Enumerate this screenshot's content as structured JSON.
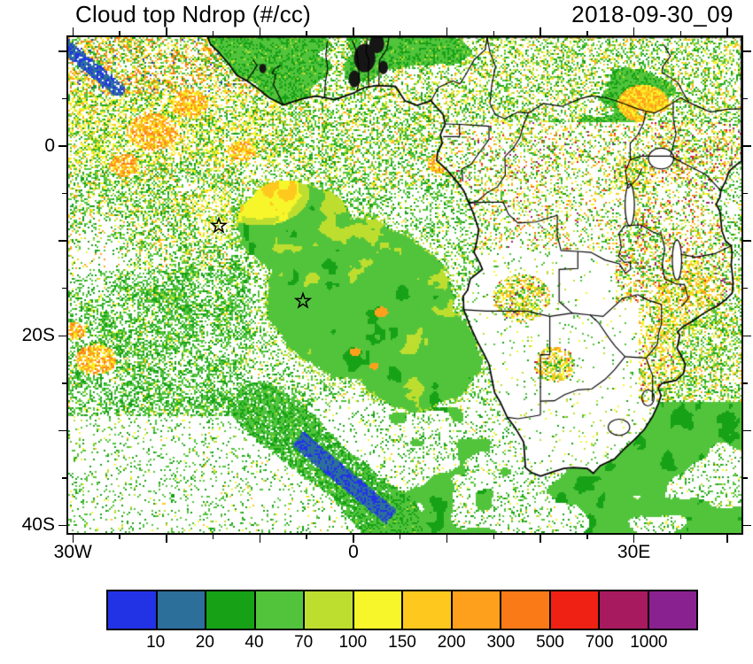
{
  "header": {
    "title": "Cloud top Ndrop (#/cc)",
    "date": "2018-09-30_09"
  },
  "map": {
    "lon_range": [
      -30.5,
      41.5
    ],
    "lat_range": [
      -40.8,
      11.5
    ]
  },
  "axes": {
    "x": [
      {
        "label": "30W",
        "lon": -30
      },
      {
        "label": "0",
        "lon": 0
      },
      {
        "label": "30E",
        "lon": 30
      }
    ],
    "y": [
      {
        "label": "0",
        "lat": 0
      },
      {
        "label": "20S",
        "lat": -20
      },
      {
        "label": "40S",
        "lat": -40
      }
    ]
  },
  "colorbar": {
    "levels": [
      "10",
      "20",
      "40",
      "70",
      "100",
      "150",
      "200",
      "300",
      "500",
      "700",
      "1000"
    ],
    "colors": [
      "#2233e6",
      "#2d6f9b",
      "#17a117",
      "#52c43c",
      "#bede2f",
      "#f6f62a",
      "#ffc81e",
      "#ffa01c",
      "#fa7a18",
      "#ef2014",
      "#a81a5f",
      "#8a2190"
    ]
  },
  "markers": {
    "stars": [
      {
        "lon": -14.4,
        "lat": -8.4
      },
      {
        "lon": -5.4,
        "lat": -16.3
      }
    ]
  },
  "chart_data": {
    "type": "heatmap",
    "title": "Cloud top Ndrop (#/cc)",
    "timestamp_label": "2018-09-30_09",
    "units": "#/cc",
    "x_axis": {
      "tick_labels": [
        "30W",
        "0",
        "30E"
      ],
      "lon_range": [
        -30.5,
        41.5
      ]
    },
    "y_axis": {
      "tick_labels": [
        "0",
        "20S",
        "40S"
      ],
      "lat_range": [
        -40.8,
        11.5
      ]
    },
    "legend_levels": [
      10,
      20,
      40,
      70,
      100,
      150,
      200,
      300,
      500,
      700,
      1000
    ],
    "legend_colors": [
      "#2233e6",
      "#2d6f9b",
      "#17a117",
      "#52c43c",
      "#bede2f",
      "#f6f62a",
      "#ffc81e",
      "#ffa01c",
      "#fa7a18",
      "#ef2014",
      "#a81a5f",
      "#8a2190"
    ],
    "markers": [
      {
        "type": "star",
        "lon": -14.4,
        "lat": -8.4
      },
      {
        "type": "star",
        "lon": -5.4,
        "lat": -16.3
      }
    ],
    "features": [
      "Large contiguous green stratocumulus deck (Ndrop ~20-70 /cc) over SE Atlantic centered near 0E, 17S",
      "Yellow fringe (~100-150 /cc) on northwest rim of deck with small gold/orange patches near its top edge",
      "Dense orange/yellow/green speckle field (150-500 /cc) in northwest ocean corner near 15-30W, 3-11N",
      "Blue streaks (<20 /cc) in far top-left corner and along a SE-trending band near 5W-5E, 28-40S",
      "Orange patch near 27W, 22S; scattered green speckle waves across southwest ocean",
      "Mostly clear (white) land over southern Africa; colorful speckles (green/yellow/orange/red/purple up to >1000 /cc) over central and eastern Africa",
      "Dense yellow-green clusters over SE Angola, Botswana and Mozambique region",
      "Broad smooth green cloud areas in the bottom-right ocean south of South Africa",
      "Small black data patches near 0-3E, 6-11N",
      "Two open star markers in the SE Atlantic"
    ]
  }
}
